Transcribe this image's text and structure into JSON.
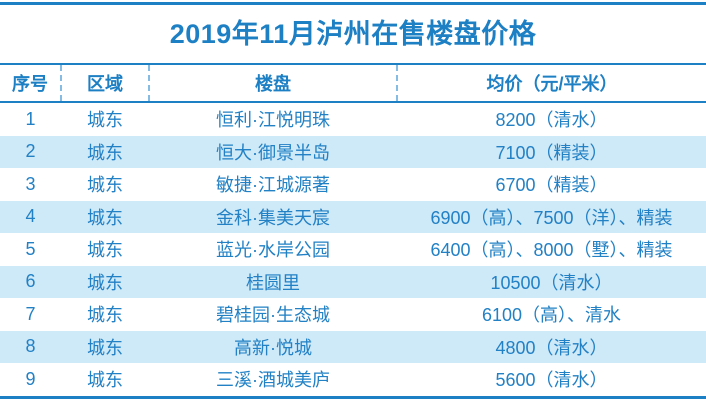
{
  "chart_data": {
    "type": "table",
    "title": "2019年11月泸州在售楼盘价格",
    "columns": [
      "序号",
      "区域",
      "楼盘",
      "均价（元/平米）"
    ],
    "rows": [
      [
        "1",
        "城东",
        "恒利·江悦明珠",
        "8200（清水）"
      ],
      [
        "2",
        "城东",
        "恒大·御景半岛",
        "7100（精装）"
      ],
      [
        "3",
        "城东",
        "敏捷·江城源著",
        "6700（精装）"
      ],
      [
        "4",
        "城东",
        "金科·集美天宸",
        "6900（高）、7500（洋）、精装"
      ],
      [
        "5",
        "城东",
        "蓝光·水岸公园",
        "6400（高）、8000（墅）、精装"
      ],
      [
        "6",
        "城东",
        "桂圆里",
        "10500（清水）"
      ],
      [
        "7",
        "城东",
        "碧桂园·生态城",
        "6100（高）、清水"
      ],
      [
        "8",
        "城东",
        "高新·悦城",
        "4800（清水）"
      ],
      [
        "9",
        "城东",
        "三溪·酒城美庐",
        "5600（清水）"
      ]
    ],
    "layout": {
      "striped": true,
      "stripe_rows": "even",
      "header_dividers": "dashed-vertical",
      "outer_rules": "top-and-bottom-solid"
    }
  },
  "colors": {
    "accent_blue": "#1E80C4",
    "text_blue": "#2281C5",
    "stripe_bg": "#CEE9F8",
    "dashed_divider": "#85BCE4",
    "background": "#FFFFFF"
  }
}
